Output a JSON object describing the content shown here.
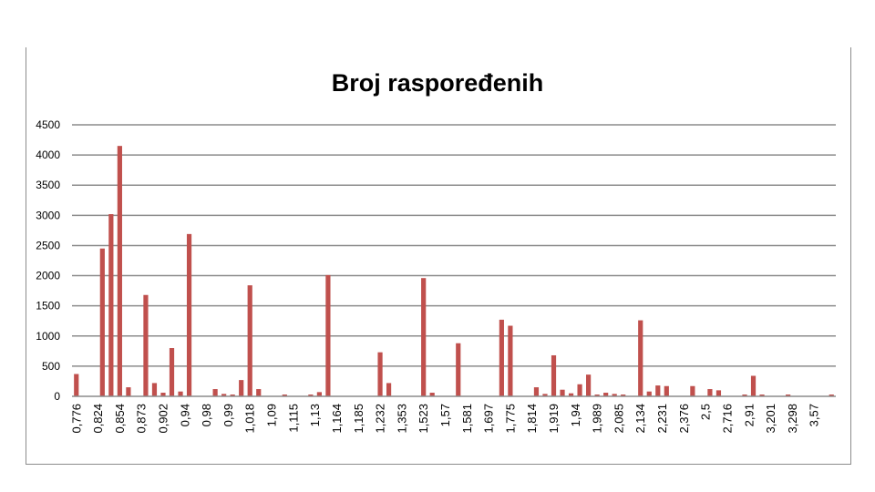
{
  "chart_data": {
    "type": "bar",
    "title": "Broj raspoređenih",
    "xlabel": "",
    "ylabel": "",
    "ylim": [
      0,
      4500
    ],
    "yticks": [
      0,
      500,
      1000,
      1500,
      2000,
      2500,
      3000,
      3500,
      4000,
      4500
    ],
    "grid": true,
    "legend": "none",
    "bar_color": "#c0504d",
    "x_tick_labels": [
      "0,776",
      "0,824",
      "0,854",
      "0,873",
      "0,902",
      "0,94",
      "0,98",
      "0,99",
      "1,018",
      "1,09",
      "1,115",
      "1,13",
      "1,164",
      "1,185",
      "1,232",
      "1,353",
      "1,523",
      "1,57",
      "1,581",
      "1,697",
      "1,775",
      "1,814",
      "1,919",
      "1,94",
      "1,989",
      "2,085",
      "2,134",
      "2,231",
      "2,376",
      "2,5",
      "2,716",
      "2,91",
      "3,201",
      "3,298",
      "3,57"
    ],
    "values": [
      370,
      0,
      0,
      2450,
      3020,
      4150,
      150,
      0,
      1680,
      220,
      60,
      800,
      80,
      2690,
      0,
      0,
      120,
      40,
      30,
      270,
      1840,
      120,
      0,
      0,
      30,
      0,
      0,
      30,
      70,
      2010,
      0,
      0,
      0,
      0,
      0,
      730,
      220,
      0,
      0,
      0,
      1960,
      60,
      0,
      0,
      880,
      0,
      0,
      0,
      0,
      1270,
      1170,
      0,
      0,
      150,
      40,
      680,
      110,
      50,
      200,
      360,
      30,
      60,
      40,
      30,
      0,
      1260,
      80,
      180,
      170,
      0,
      0,
      170,
      0,
      120,
      100,
      0,
      0,
      30,
      340,
      30,
      0,
      0,
      30,
      0,
      0,
      0,
      0,
      30
    ]
  }
}
